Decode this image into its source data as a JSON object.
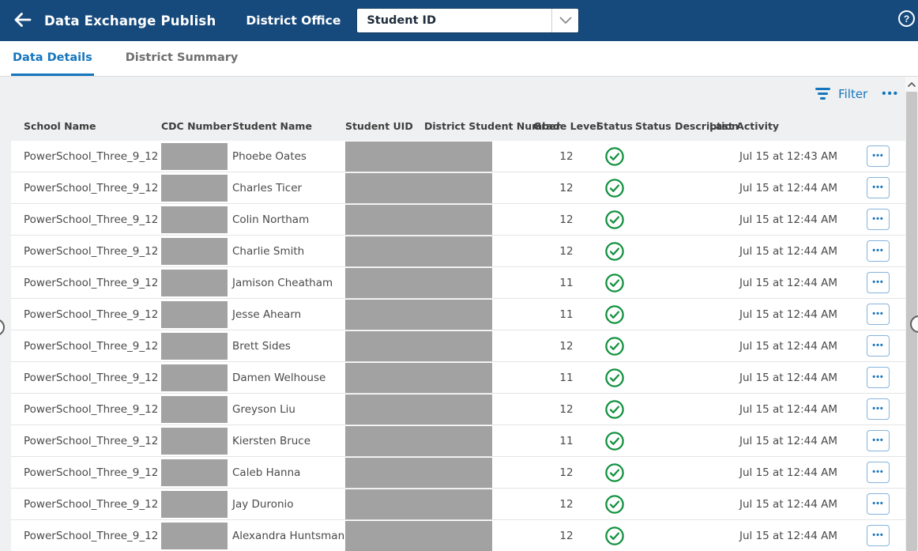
{
  "colors": {
    "header_navy": "#174a7c",
    "accent_blue": "#1576be",
    "success_green": "#12913e",
    "redaction_gray": "#a2a2a2",
    "tab_inactive_gray": "#6f6f6f"
  },
  "header": {
    "title": "Data Exchange Publish",
    "context_label": "District Office",
    "scope_dropdown": {
      "value": "Student ID"
    },
    "help_glyph": "?"
  },
  "tabs": [
    {
      "label": "Data Details",
      "active": true
    },
    {
      "label": "District Summary",
      "active": false
    }
  ],
  "toolbar": {
    "filter_label": "Filter",
    "more_label": "•••"
  },
  "table": {
    "columns": [
      "School Name",
      "CDC Number",
      "Student Name",
      "Student UID",
      "District Student Number",
      "Grade Level",
      "Status",
      "Status Description",
      "Last Activity"
    ],
    "row_action_label": "•••",
    "redacted_columns": [
      "CDC Number",
      "Student UID / District Student Number"
    ],
    "rows": [
      {
        "school": "PowerSchool_Three_9_12",
        "student": "Phoebe Oates",
        "grade": "12",
        "status": "success",
        "status_description": "",
        "last_activity": "Jul 15 at 12:43 AM"
      },
      {
        "school": "PowerSchool_Three_9_12",
        "student": "Charles Ticer",
        "grade": "12",
        "status": "success",
        "status_description": "",
        "last_activity": "Jul 15 at 12:44 AM"
      },
      {
        "school": "PowerSchool_Three_9_12",
        "student": "Colin Northam",
        "grade": "12",
        "status": "success",
        "status_description": "",
        "last_activity": "Jul 15 at 12:44 AM"
      },
      {
        "school": "PowerSchool_Three_9_12",
        "student": "Charlie Smith",
        "grade": "12",
        "status": "success",
        "status_description": "",
        "last_activity": "Jul 15 at 12:44 AM"
      },
      {
        "school": "PowerSchool_Three_9_12",
        "student": "Jamison Cheatham",
        "grade": "11",
        "status": "success",
        "status_description": "",
        "last_activity": "Jul 15 at 12:44 AM"
      },
      {
        "school": "PowerSchool_Three_9_12",
        "student": "Jesse Ahearn",
        "grade": "11",
        "status": "success",
        "status_description": "",
        "last_activity": "Jul 15 at 12:44 AM"
      },
      {
        "school": "PowerSchool_Three_9_12",
        "student": "Brett Sides",
        "grade": "12",
        "status": "success",
        "status_description": "",
        "last_activity": "Jul 15 at 12:44 AM"
      },
      {
        "school": "PowerSchool_Three_9_12",
        "student": "Damen Welhouse",
        "grade": "11",
        "status": "success",
        "status_description": "",
        "last_activity": "Jul 15 at 12:44 AM"
      },
      {
        "school": "PowerSchool_Three_9_12",
        "student": "Greyson Liu",
        "grade": "12",
        "status": "success",
        "status_description": "",
        "last_activity": "Jul 15 at 12:44 AM"
      },
      {
        "school": "PowerSchool_Three_9_12",
        "student": "Kiersten Bruce",
        "grade": "11",
        "status": "success",
        "status_description": "",
        "last_activity": "Jul 15 at 12:44 AM"
      },
      {
        "school": "PowerSchool_Three_9_12",
        "student": "Caleb Hanna",
        "grade": "12",
        "status": "success",
        "status_description": "",
        "last_activity": "Jul 15 at 12:44 AM"
      },
      {
        "school": "PowerSchool_Three_9_12",
        "student": "Jay Duronio",
        "grade": "12",
        "status": "success",
        "status_description": "",
        "last_activity": "Jul 15 at 12:44 AM"
      },
      {
        "school": "PowerSchool_Three_9_12",
        "student": "Alexandra Huntsman",
        "grade": "12",
        "status": "success",
        "status_description": "",
        "last_activity": "Jul 15 at 12:44 AM"
      }
    ]
  }
}
